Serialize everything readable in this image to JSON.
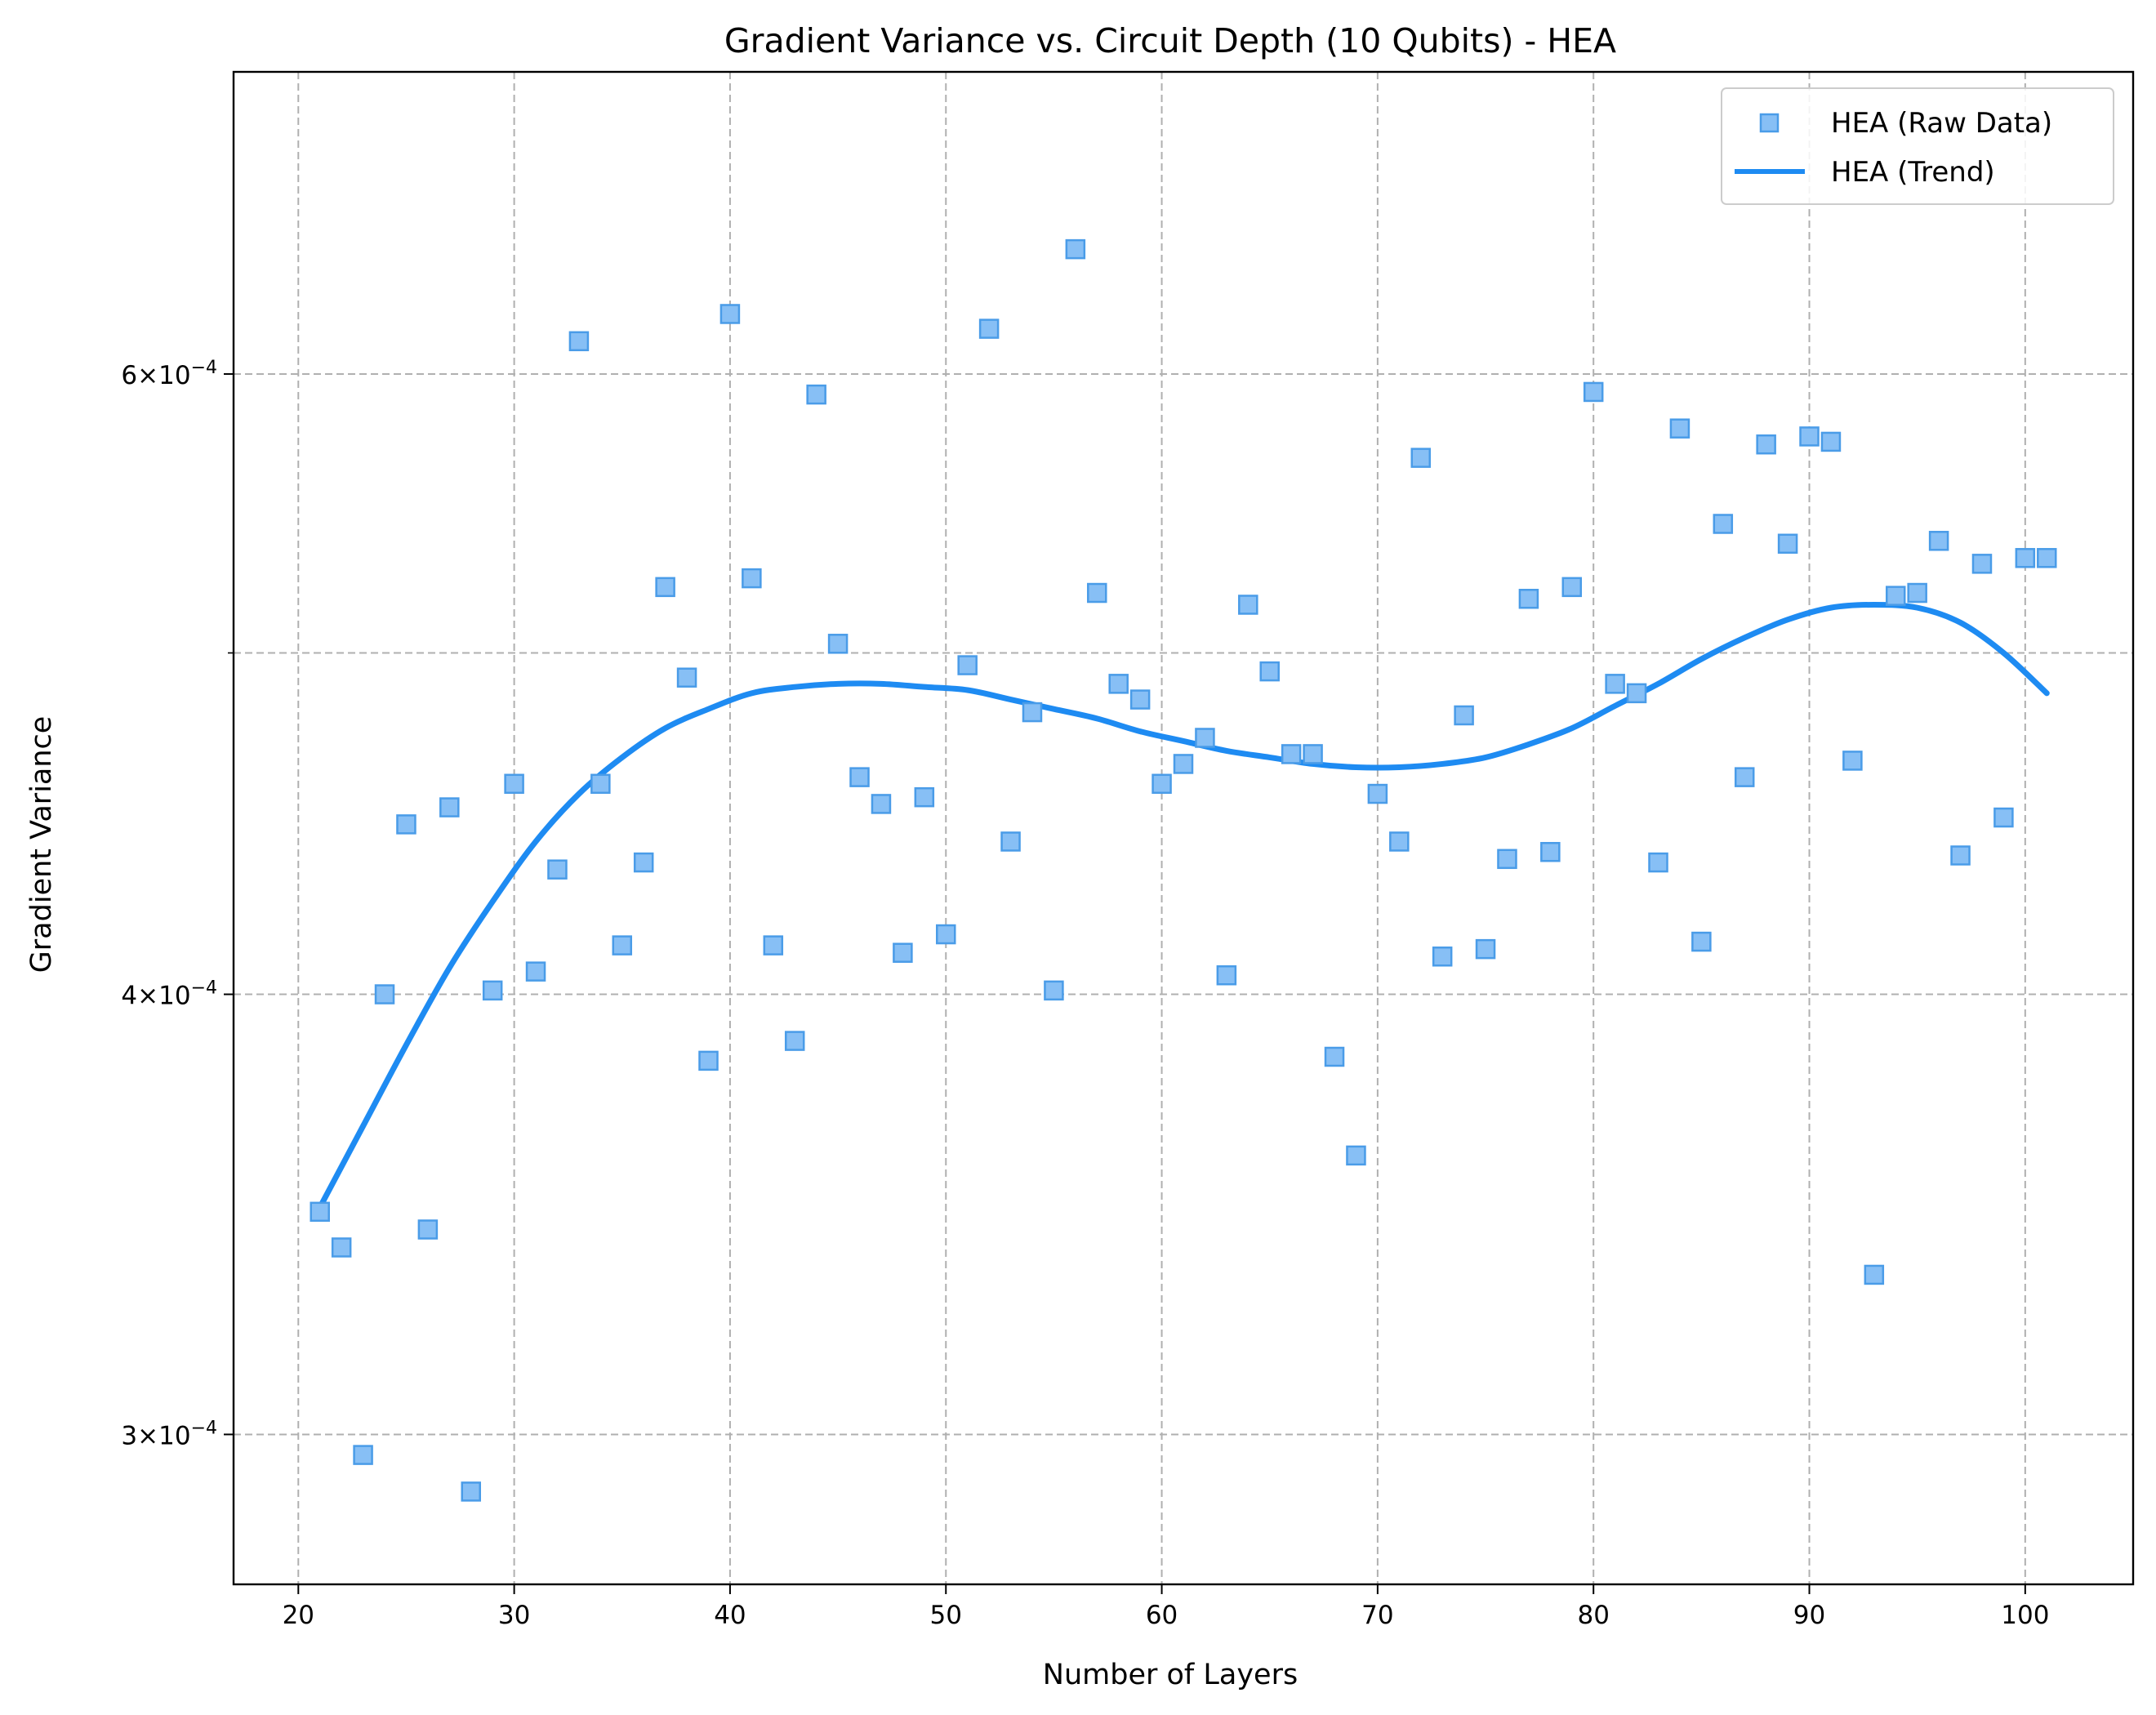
{
  "chart_data": {
    "type": "scatter",
    "title": "Gradient Variance vs. Circuit Depth (10 Qubits) - HEA",
    "xlabel": "Number of Layers",
    "ylabel": "Gradient Variance",
    "xlim": [
      17,
      105
    ],
    "ylim": [
      0.000272,
      0.000731
    ],
    "yscale": "log",
    "grid": true,
    "legend_position": "upper right",
    "x_ticks": [
      20,
      30,
      40,
      50,
      60,
      70,
      80,
      90,
      100
    ],
    "y_ticks": [
      {
        "value": 0.0003,
        "mantissa": "3",
        "base": "10",
        "exponent": "−4"
      },
      {
        "value": 0.0004,
        "mantissa": "4",
        "base": "10",
        "exponent": "−4"
      },
      {
        "value": 0.0006,
        "mantissa": "6",
        "base": "10",
        "exponent": "−4"
      }
    ],
    "y_minor_grid": [
      0.0005
    ],
    "series": [
      {
        "name": "HEA (Raw Data)",
        "kind": "scatter",
        "marker": "square",
        "color": "#87bff5",
        "edge_color": "#4a9ce8",
        "x": [
          21,
          22,
          23,
          24,
          25,
          26,
          27,
          28,
          29,
          30,
          31,
          32,
          33,
          34,
          35,
          36,
          37,
          38,
          39,
          40,
          41,
          42,
          43,
          44,
          45,
          46,
          47,
          48,
          49,
          50,
          51,
          52,
          53,
          54,
          55,
          56,
          57,
          58,
          59,
          60,
          61,
          62,
          63,
          64,
          65,
          66,
          67,
          68,
          69,
          70,
          71,
          72,
          73,
          74,
          75,
          76,
          77,
          78,
          79,
          80,
          81,
          82,
          83,
          84,
          85,
          86,
          87,
          88,
          89,
          90,
          91,
          92,
          93,
          94,
          95,
          96,
          97,
          98,
          99,
          100,
          101
        ],
        "y": [
          0.000347,
          0.000339,
          0.000296,
          0.0004,
          0.000447,
          0.000343,
          0.000452,
          0.000289,
          0.000401,
          0.000459,
          0.000406,
          0.000434,
          0.000613,
          0.000459,
          0.000413,
          0.000436,
          0.000522,
          0.000492,
          0.000383,
          0.000624,
          0.000525,
          0.000413,
          0.000388,
          0.000592,
          0.000503,
          0.000461,
          0.000453,
          0.000411,
          0.000455,
          0.000416,
          0.000496,
          0.000618,
          0.000442,
          0.000481,
          0.000401,
          0.000651,
          0.00052,
          0.00049,
          0.000485,
          0.000459,
          0.000465,
          0.000473,
          0.000405,
          0.000516,
          0.000494,
          0.000468,
          0.000468,
          0.000384,
          0.00036,
          0.000456,
          0.000442,
          0.000568,
          0.00041,
          0.00048,
          0.000412,
          0.000437,
          0.000518,
          0.000439,
          0.000522,
          0.000593,
          0.00049,
          0.000487,
          0.000436,
          0.000579,
          0.000414,
          0.000544,
          0.000461,
          0.000573,
          0.000537,
          0.000576,
          0.000574,
          0.000466,
          0.000333,
          0.000519,
          0.00052,
          0.000538,
          0.000438,
          0.00053,
          0.000449,
          0.000532,
          0.000532
        ]
      },
      {
        "name": "HEA (Trend)",
        "kind": "line",
        "color": "#1e8bf2",
        "x": [
          21,
          23,
          25,
          27,
          29,
          31,
          33,
          35,
          37,
          39,
          41,
          43,
          45,
          47,
          49,
          51,
          53,
          55,
          57,
          59,
          61,
          63,
          65,
          67,
          69,
          71,
          73,
          75,
          77,
          79,
          81,
          83,
          85,
          87,
          89,
          91,
          93,
          95,
          97,
          99,
          101
        ],
        "y": [
          0.000348,
          0.000367,
          0.000387,
          0.000407,
          0.000425,
          0.000442,
          0.000456,
          0.000467,
          0.000476,
          0.000482,
          0.000487,
          0.000489,
          0.00049,
          0.00049,
          0.000489,
          0.000488,
          0.000485,
          0.000482,
          0.000479,
          0.000475,
          0.000472,
          0.000469,
          0.000467,
          0.000465,
          0.000464,
          0.000464,
          0.000465,
          0.000467,
          0.000471,
          0.000476,
          0.000483,
          0.00049,
          0.000498,
          0.000505,
          0.000511,
          0.000515,
          0.000516,
          0.000515,
          0.00051,
          0.0005,
          0.000487
        ]
      }
    ]
  }
}
